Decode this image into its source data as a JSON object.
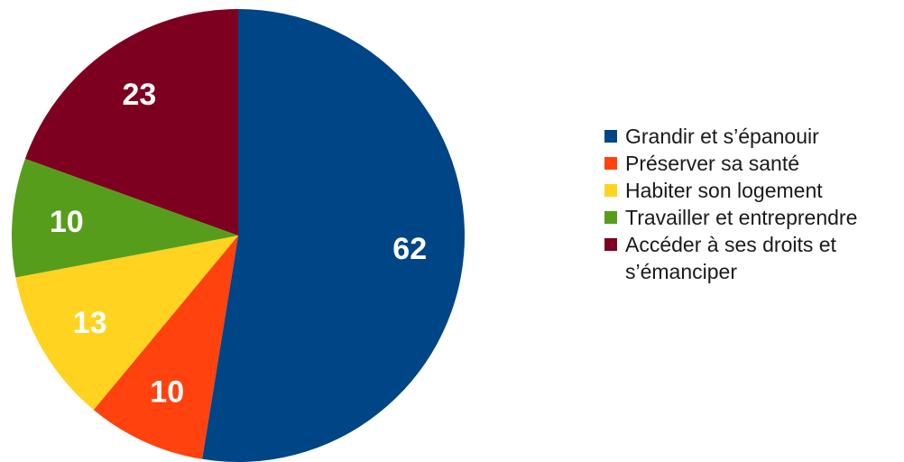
{
  "chart_data": {
    "type": "pie",
    "title": "",
    "start_angle_deg": 0,
    "direction": "clockwise",
    "legend_position": "right",
    "slices": [
      {
        "label": "Grandir et s’épanouir",
        "value": 62,
        "color": "#004586"
      },
      {
        "label": "Préserver sa santé",
        "value": 10,
        "color": "#ff420e"
      },
      {
        "label": "Habiter son logement",
        "value": 13,
        "color": "#ffd320"
      },
      {
        "label": "Travailler et entreprendre",
        "value": 10,
        "color": "#579d1c"
      },
      {
        "label": "Accéder à ses droits et s’émanciper",
        "value": 23,
        "color": "#7e0021"
      }
    ]
  }
}
